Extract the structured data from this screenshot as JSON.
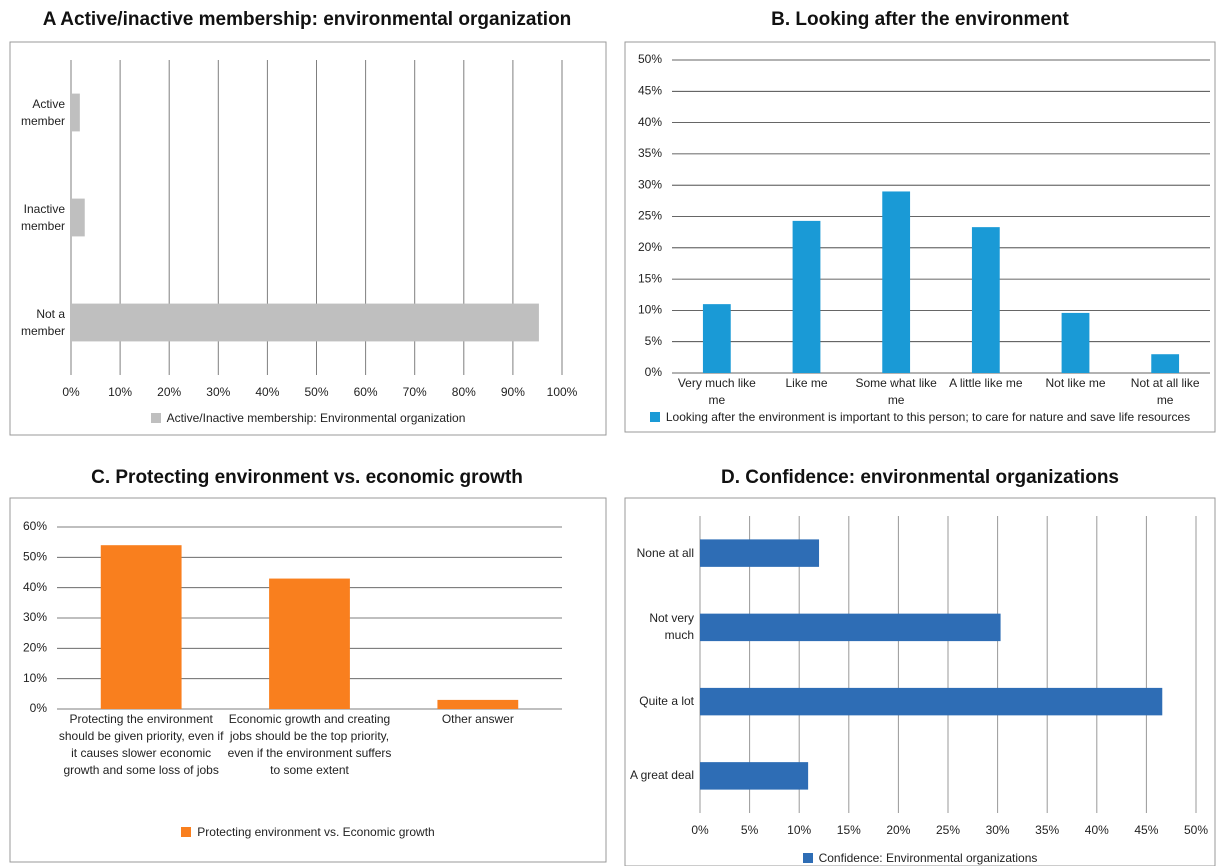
{
  "chart_data": [
    {
      "type": "barh",
      "title": "A Active/inactive membership: environmental organization",
      "categories": [
        "Active member",
        "Inactive member",
        "Not a member"
      ],
      "series": [
        {
          "name": "Active/Inactive membership: Environmental organization",
          "color": "#bfbfbf",
          "values": [
            1.8,
            2.8,
            95.3
          ]
        }
      ],
      "xlim": [
        0,
        100
      ],
      "xticks": [
        {
          "value": 0,
          "label": "0%"
        },
        {
          "value": 10,
          "label": "10%"
        },
        {
          "value": 20,
          "label": "20%"
        },
        {
          "value": 30,
          "label": "30%"
        },
        {
          "value": 40,
          "label": "40%"
        },
        {
          "value": 50,
          "label": "50%"
        },
        {
          "value": 60,
          "label": "60%"
        },
        {
          "value": 70,
          "label": "70%"
        },
        {
          "value": 80,
          "label": "80%"
        },
        {
          "value": 90,
          "label": "90%"
        },
        {
          "value": 100,
          "label": "100%"
        }
      ],
      "grid": true,
      "grid_color": "#7f7f7f",
      "legend": "bottom"
    },
    {
      "type": "bar",
      "title": "B. Looking after the environment",
      "categories": [
        "Very much like me",
        "Like me",
        "Some what like me",
        "A little like me",
        "Not like me",
        "Not at all like me"
      ],
      "series": [
        {
          "name": "Looking after the environment is important to this person; to care for nature and save life resources",
          "color": "#1a9ad6",
          "values": [
            11,
            24.3,
            29,
            23.3,
            9.6,
            3
          ]
        }
      ],
      "ylim": [
        0,
        50
      ],
      "yticks": [
        {
          "value": 0,
          "label": "0%"
        },
        {
          "value": 5,
          "label": "5%"
        },
        {
          "value": 10,
          "label": "10%"
        },
        {
          "value": 15,
          "label": "15%"
        },
        {
          "value": 20,
          "label": "20%"
        },
        {
          "value": 25,
          "label": "25%"
        },
        {
          "value": 30,
          "label": "30%"
        },
        {
          "value": 35,
          "label": "35%"
        },
        {
          "value": 40,
          "label": "40%"
        },
        {
          "value": 45,
          "label": "45%"
        },
        {
          "value": 50,
          "label": "50%"
        }
      ],
      "grid": true,
      "grid_color": "#333333",
      "legend": "bottom"
    },
    {
      "type": "bar",
      "title": "C. Protecting environment vs. economic growth",
      "categories": [
        "Protecting the environment should be given priority, even if it causes slower economic growth and some loss of jobs",
        "Economic growth and creating jobs should be the top priority, even if the environment suffers to some extent",
        "Other answer"
      ],
      "series": [
        {
          "name": "Protecting environment vs. Economic growth",
          "color": "#f97f1e",
          "values": [
            54,
            43,
            3
          ]
        }
      ],
      "ylim": [
        0,
        60
      ],
      "yticks": [
        {
          "value": 0,
          "label": "0%"
        },
        {
          "value": 10,
          "label": "10%"
        },
        {
          "value": 20,
          "label": "20%"
        },
        {
          "value": 30,
          "label": "30%"
        },
        {
          "value": 40,
          "label": "40%"
        },
        {
          "value": 50,
          "label": "50%"
        },
        {
          "value": 60,
          "label": "60%"
        }
      ],
      "grid": true,
      "grid_color": "#555555",
      "legend": "bottom"
    },
    {
      "type": "barh",
      "title": "D. Confidence: environmental organizations",
      "categories": [
        "None at all",
        "Not very much",
        "Quite a lot",
        "A great deal"
      ],
      "series": [
        {
          "name": "Confidence: Environmental organizations",
          "color": "#2e6db5",
          "values": [
            12,
            30.3,
            46.6,
            10.9
          ]
        }
      ],
      "xlim": [
        0,
        50
      ],
      "xticks": [
        {
          "value": 0,
          "label": "0%"
        },
        {
          "value": 5,
          "label": "5%"
        },
        {
          "value": 10,
          "label": "10%"
        },
        {
          "value": 15,
          "label": "15%"
        },
        {
          "value": 20,
          "label": "20%"
        },
        {
          "value": 25,
          "label": "25%"
        },
        {
          "value": 30,
          "label": "30%"
        },
        {
          "value": 35,
          "label": "35%"
        },
        {
          "value": 40,
          "label": "40%"
        },
        {
          "value": 45,
          "label": "45%"
        },
        {
          "value": 50,
          "label": "50%"
        }
      ],
      "grid": true,
      "grid_color": "#999999",
      "legend": "bottom"
    }
  ]
}
